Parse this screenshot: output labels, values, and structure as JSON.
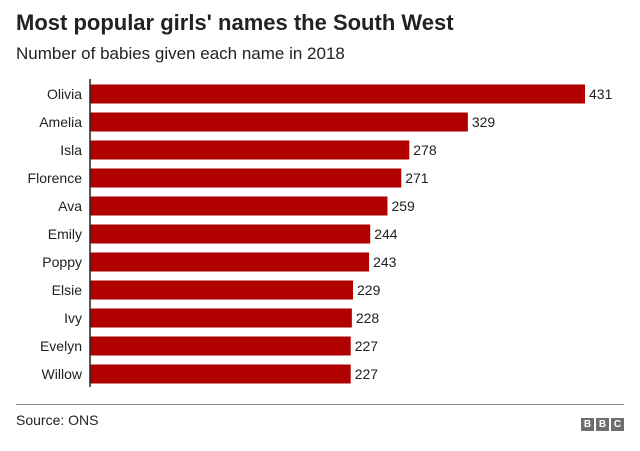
{
  "title": "Most popular girls' names the South West",
  "subtitle": "Number of babies given each name in 2018",
  "source": "Source: ONS",
  "brand": {
    "letters": [
      "B",
      "B",
      "C"
    ]
  },
  "colors": {
    "bar": "#b00000",
    "text": "#222222",
    "axis": "#222222",
    "brand_block": "#6e6e6e"
  },
  "chart_data": {
    "type": "bar",
    "orientation": "horizontal",
    "title": "Most popular girls' names the South West",
    "subtitle": "Number of babies given each name in 2018",
    "xlabel": "",
    "ylabel": "",
    "grid": false,
    "legend": "none",
    "xlim": [
      0,
      431
    ],
    "categories": [
      "Olivia",
      "Amelia",
      "Isla",
      "Florence",
      "Ava",
      "Emily",
      "Poppy",
      "Elsie",
      "Ivy",
      "Evelyn",
      "Willow"
    ],
    "values": [
      431,
      329,
      278,
      271,
      259,
      244,
      243,
      229,
      228,
      227,
      227
    ],
    "data_labels": [
      "431",
      "329",
      "278",
      "271",
      "259",
      "244",
      "243",
      "229",
      "228",
      "227",
      "227"
    ]
  }
}
